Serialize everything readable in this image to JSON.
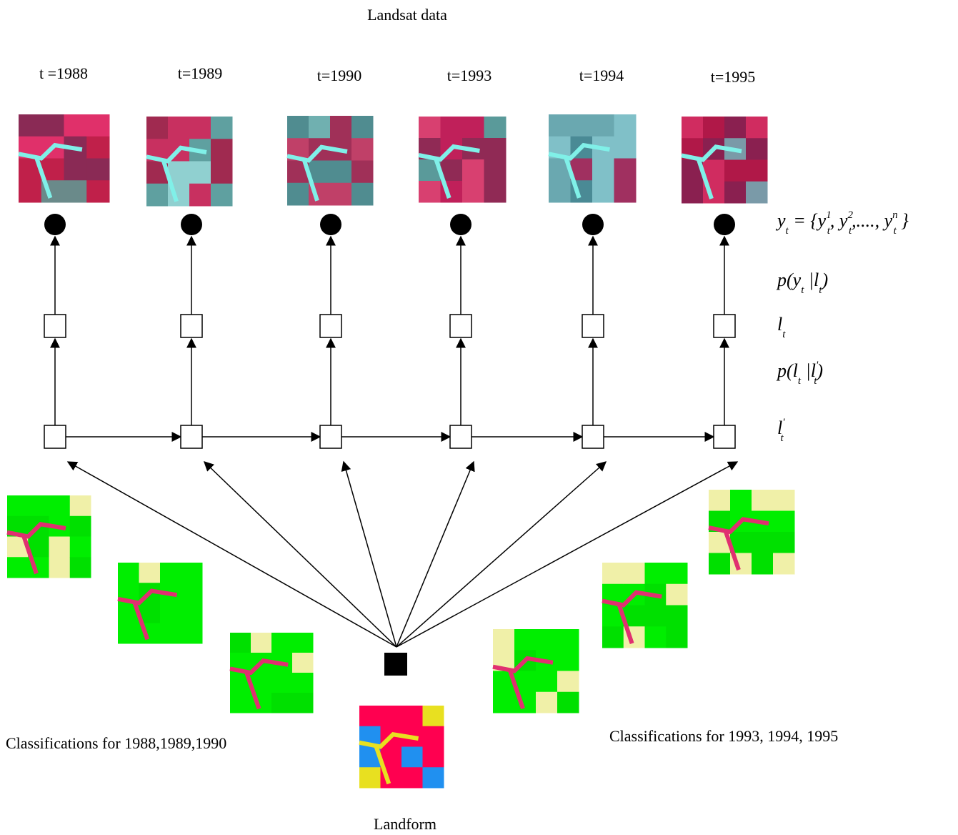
{
  "header": {
    "title": "Landsat data"
  },
  "times": [
    "t =1988",
    "t=1989",
    "t=1990",
    "t=1993",
    "t=1994",
    "t=1995"
  ],
  "equations": [
    [
      [
        "y",
        "t"
      ],
      [
        " = {"
      ],
      [
        "y",
        "t",
        "1"
      ],
      [
        ", "
      ],
      [
        "y",
        "t",
        "2"
      ],
      [
        ",...., "
      ],
      [
        "y",
        "t",
        "n"
      ],
      [
        " }"
      ]
    ],
    [
      [
        "p("
      ],
      [
        "y",
        "t"
      ],
      [
        " |"
      ],
      [
        "l",
        "t"
      ],
      [
        ")"
      ]
    ],
    [
      [
        "l",
        "t"
      ]
    ],
    [
      [
        "p("
      ],
      [
        "l",
        "t"
      ],
      [
        " |"
      ],
      [
        "l",
        "t",
        "'"
      ],
      [
        ")"
      ]
    ],
    [
      [
        "l",
        "t",
        "'"
      ]
    ]
  ],
  "captions": {
    "left": "Classifications for 1988,1989,1990",
    "right": "Classifications for  1993, 1994,  1995",
    "bottom": "Landform"
  }
}
